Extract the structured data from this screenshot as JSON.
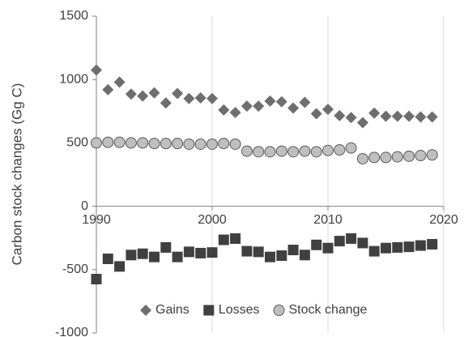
{
  "chart_data": {
    "type": "scatter",
    "y_label": "Carbon stock changes (Gg C)",
    "x": [
      1990,
      1991,
      1992,
      1993,
      1994,
      1995,
      1996,
      1997,
      1998,
      1999,
      2000,
      2001,
      2002,
      2003,
      2004,
      2005,
      2006,
      2007,
      2008,
      2009,
      2010,
      2011,
      2012,
      2013,
      2014,
      2015,
      2016,
      2017,
      2018,
      2019
    ],
    "series": [
      {
        "name": "Gains",
        "color": "#6e6e6e",
        "marker": "diamond",
        "values": [
          1075,
          920,
          980,
          885,
          870,
          895,
          815,
          890,
          850,
          855,
          850,
          760,
          740,
          790,
          790,
          830,
          825,
          775,
          820,
          730,
          765,
          715,
          700,
          660,
          735,
          710,
          710,
          710,
          705,
          705
        ]
      },
      {
        "name": "Losses",
        "color": "#404040",
        "marker": "square",
        "values": [
          -575,
          -415,
          -475,
          -385,
          -375,
          -400,
          -325,
          -400,
          -360,
          -370,
          -365,
          -265,
          -255,
          -355,
          -360,
          -400,
          -390,
          -345,
          -385,
          -305,
          -330,
          -275,
          -255,
          -290,
          -355,
          -330,
          -325,
          -320,
          -310,
          -300
        ]
      },
      {
        "name": "Stock change",
        "color": "#bfbfbf",
        "marker": "circle",
        "values": [
          500,
          505,
          505,
          500,
          500,
          495,
          495,
          495,
          490,
          490,
          490,
          495,
          490,
          435,
          430,
          430,
          435,
          430,
          435,
          430,
          440,
          445,
          460,
          375,
          385,
          385,
          390,
          395,
          400,
          405
        ]
      }
    ],
    "xlim": [
      1990,
      2020
    ],
    "xticks": [
      1990,
      2000,
      2010,
      2020
    ],
    "ylim": [
      -1000,
      1500
    ],
    "yticks": [
      -1000,
      -500,
      0,
      500,
      1000,
      1500
    ],
    "grid_x": true,
    "legend": "bottom"
  }
}
